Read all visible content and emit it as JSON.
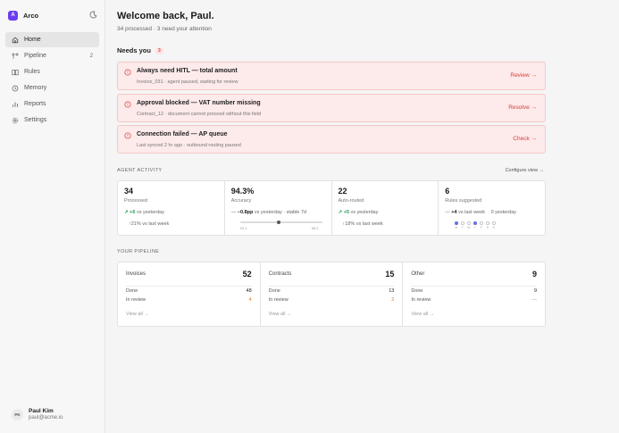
{
  "app": {
    "name": "Arco",
    "logo_letter": "A",
    "accent": "#6a3df0"
  },
  "sidebar": {
    "items": [
      {
        "label": "Home",
        "icon": "home-icon",
        "active": true
      },
      {
        "label": "Pipeline",
        "icon": "pipeline-icon",
        "badge": "2"
      },
      {
        "label": "Rules",
        "icon": "book-icon"
      },
      {
        "label": "Memory",
        "icon": "memory-icon"
      },
      {
        "label": "Reports",
        "icon": "bar-chart-icon"
      },
      {
        "label": "Settings",
        "icon": "gear-icon"
      }
    ]
  },
  "user": {
    "initials": "PK",
    "name": "Paul Kim",
    "email": "paul@acme.io"
  },
  "header": {
    "title": "Welcome back, Paul.",
    "subtitle": "34 processed · 3 need your attention"
  },
  "needs_you": {
    "title": "Needs you",
    "count": "3",
    "alerts": [
      {
        "title": "Always need HITL — total amount",
        "detail": "Invoice_031 · agent paused, waiting for review",
        "action": "Review →"
      },
      {
        "title": "Approval blocked — VAT number missing",
        "detail": "Contract_12 · document cannot proceed without this field",
        "action": "Resolve →"
      },
      {
        "title": "Connection failed — AP queue",
        "detail": "Last synced 2 hr ago · outbound routing paused",
        "action": "Check →"
      }
    ]
  },
  "agent_activity": {
    "title": "AGENT ACTIVITY",
    "configure": "Configure view →",
    "stats": [
      {
        "value": "34",
        "label": "Processed",
        "delta": "+6",
        "delta_suffix": "vs yesterday",
        "note": "↑21% vs last week"
      },
      {
        "value": "94.3%",
        "label": "Accuracy",
        "delta": "−0.8pp",
        "delta_suffix": "vs yesterday · stable 7d",
        "range_min": "93.1",
        "range_max": "96.2",
        "marker_fraction": 0.45
      },
      {
        "value": "22",
        "label": "Auto-routed",
        "delta": "+5",
        "delta_suffix": "vs yesterday",
        "note": "↑18% vs last week"
      },
      {
        "value": "6",
        "label": "Rules suggested",
        "delta": "+4",
        "delta_suffix": "vs last week",
        "extra": "0 yesterday",
        "days": [
          "M",
          "T",
          "W",
          "T",
          "F",
          "S",
          "S"
        ],
        "active_days": [
          true,
          false,
          false,
          true,
          false,
          false,
          false
        ]
      }
    ]
  },
  "pipeline": {
    "title": "YOUR PIPELINE",
    "cards": [
      {
        "name": "Invoices",
        "count": "52",
        "done_label": "Done",
        "done": "48",
        "review_label": "In review",
        "review": "4",
        "link": "View all →"
      },
      {
        "name": "Contracts",
        "count": "15",
        "done_label": "Done",
        "done": "13",
        "review_label": "In review",
        "review": "2",
        "link": "View all →"
      },
      {
        "name": "Other",
        "count": "9",
        "done_label": "Done",
        "done": "9",
        "review_label": "In review",
        "review": "—",
        "link": "View all →"
      }
    ]
  }
}
